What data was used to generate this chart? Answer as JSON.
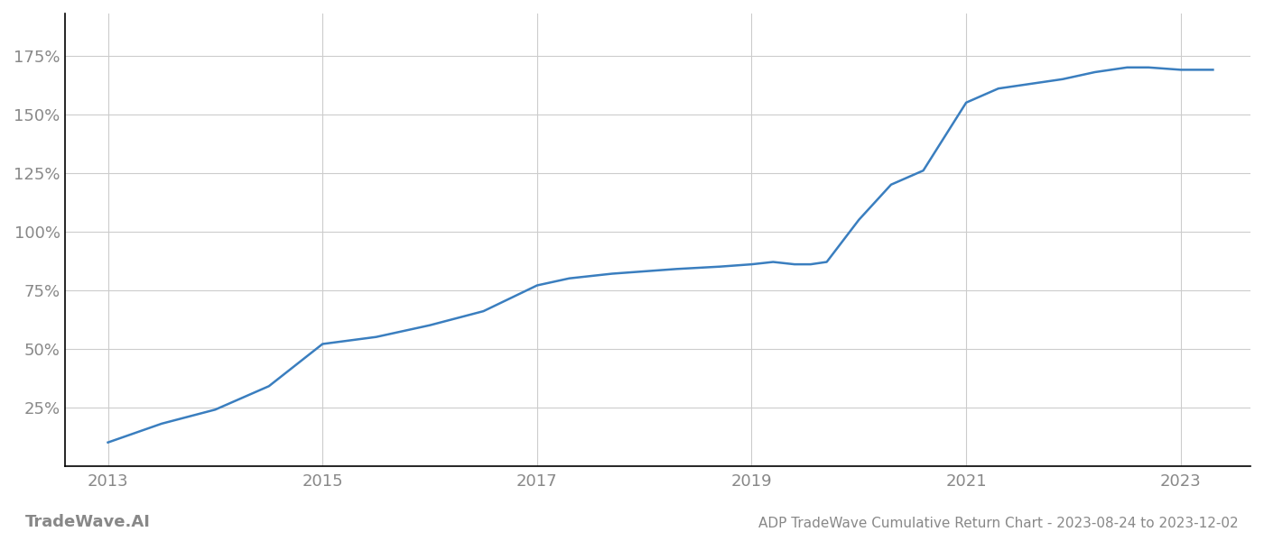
{
  "title": "ADP TradeWave Cumulative Return Chart - 2023-08-24 to 2023-12-02",
  "watermark": "TradeWave.AI",
  "line_color": "#3a7ebf",
  "background_color": "#ffffff",
  "grid_color": "#cccccc",
  "x_years": [
    2013.0,
    2013.5,
    2014.0,
    2014.5,
    2015.0,
    2015.5,
    2016.0,
    2016.5,
    2017.0,
    2017.3,
    2017.7,
    2018.0,
    2018.3,
    2018.7,
    2019.0,
    2019.2,
    2019.4,
    2019.55,
    2019.7,
    2020.0,
    2020.3,
    2020.6,
    2021.0,
    2021.3,
    2021.6,
    2021.9,
    2022.2,
    2022.5,
    2022.7,
    2023.0,
    2023.3
  ],
  "y_values": [
    10,
    18,
    24,
    34,
    52,
    55,
    60,
    66,
    77,
    80,
    82,
    83,
    84,
    85,
    86,
    87,
    86,
    86,
    87,
    105,
    120,
    126,
    155,
    161,
    163,
    165,
    168,
    170,
    170,
    169,
    169
  ],
  "xlim": [
    2012.6,
    2023.65
  ],
  "ylim": [
    0,
    193
  ],
  "yticks": [
    25,
    50,
    75,
    100,
    125,
    150,
    175
  ],
  "ytick_labels": [
    "25%",
    "50%",
    "75%",
    "100%",
    "125%",
    "150%",
    "175%"
  ],
  "xticks": [
    2013,
    2015,
    2017,
    2019,
    2021,
    2023
  ],
  "xtick_color": "#888888",
  "ytick_color": "#888888",
  "line_width": 1.8,
  "title_fontsize": 11,
  "watermark_fontsize": 13,
  "tick_fontsize": 13
}
